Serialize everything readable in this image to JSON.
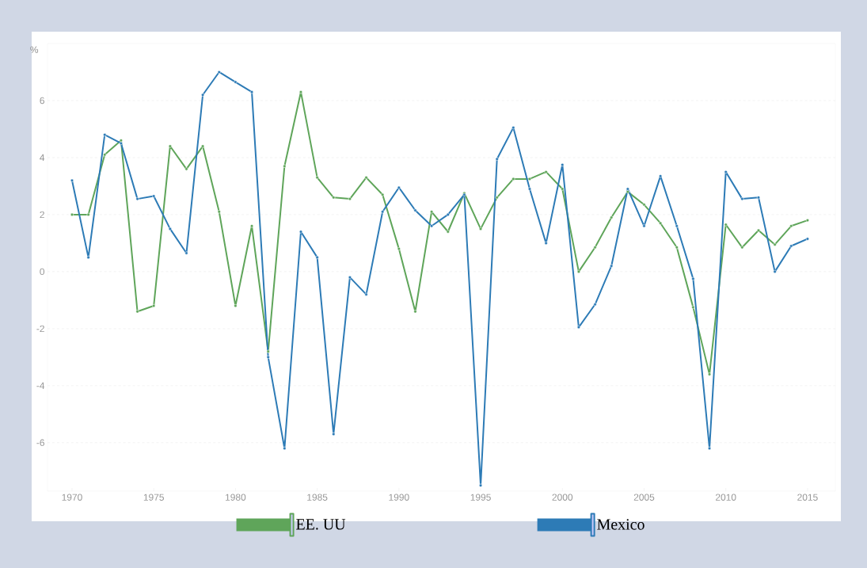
{
  "chart_data": {
    "type": "line",
    "ylabel": "%",
    "x": [
      1970,
      1971,
      1972,
      1973,
      1974,
      1975,
      1976,
      1977,
      1978,
      1979,
      1980,
      1981,
      1982,
      1983,
      1984,
      1985,
      1986,
      1987,
      1988,
      1989,
      1990,
      1991,
      1992,
      1993,
      1994,
      1995,
      1996,
      1997,
      1998,
      1999,
      2000,
      2001,
      2002,
      2003,
      2004,
      2005,
      2006,
      2007,
      2008,
      2009,
      2010,
      2011,
      2012,
      2013,
      2014,
      2015
    ],
    "series": [
      {
        "name": "EE. UU",
        "color": "#5fa55a",
        "values": [
          2.0,
          2.0,
          4.1,
          4.6,
          -1.4,
          -1.2,
          4.4,
          3.6,
          4.4,
          2.1,
          -1.2,
          1.6,
          -2.8,
          3.7,
          6.3,
          3.3,
          2.6,
          2.55,
          3.3,
          2.7,
          0.8,
          -1.4,
          2.1,
          1.4,
          2.75,
          1.5,
          2.6,
          3.25,
          3.25,
          3.5,
          2.9,
          0.0,
          0.85,
          1.9,
          2.8,
          2.35,
          1.7,
          0.85,
          -1.25,
          -3.6,
          1.65,
          0.85,
          1.45,
          0.95,
          1.6,
          1.8
        ]
      },
      {
        "name": "Mexico",
        "color": "#2d7bb6",
        "values": [
          3.2,
          0.5,
          4.8,
          4.5,
          2.55,
          2.65,
          1.5,
          0.65,
          6.2,
          7.0,
          6.65,
          6.3,
          -3.0,
          -6.2,
          1.4,
          0.5,
          -5.7,
          -0.2,
          -0.8,
          2.1,
          2.95,
          2.15,
          1.6,
          2.0,
          2.7,
          -7.5,
          3.95,
          5.05,
          2.9,
          1.0,
          3.75,
          -1.95,
          -1.15,
          0.2,
          2.9,
          1.6,
          3.35,
          1.6,
          -0.25,
          -6.2,
          3.5,
          2.55,
          2.6,
          0.0,
          0.9,
          1.15
        ]
      }
    ],
    "xlim": [
      1968.5,
      2016.7
    ],
    "ylim": [
      -7.7,
      8
    ],
    "xticks": [
      1970,
      1975,
      1980,
      1985,
      1990,
      1995,
      2000,
      2005,
      2010,
      2015
    ],
    "yticks": [
      -6,
      -4,
      -2,
      0,
      2,
      4,
      6
    ],
    "grid": "y",
    "legend": "bottom",
    "marker": "circle",
    "line_style": "solid"
  }
}
